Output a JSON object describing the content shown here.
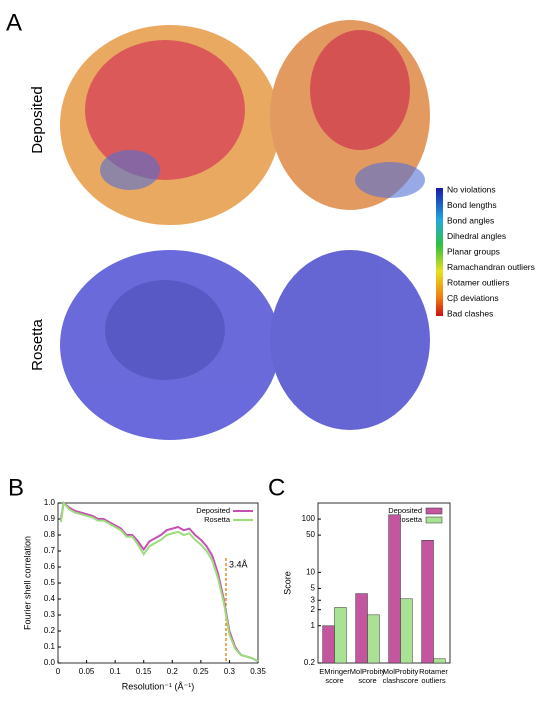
{
  "panel_a": {
    "label": "A",
    "rows": [
      "Deposited",
      "Rosetta"
    ],
    "legend": [
      "No violations",
      "Bond lengths",
      "Bond angles",
      "Dihedral angles",
      "Planar groups",
      "Ramachandran outliers",
      "Rotamer outliers",
      "Cβ deviations",
      "Bad clashes"
    ]
  },
  "chart_data": [
    {
      "type": "line",
      "panel": "B",
      "xlabel": "Resolution⁻¹ (Å⁻¹)",
      "ylabel": "Fourier shell correlation",
      "x": [
        0.005,
        0.01,
        0.02,
        0.03,
        0.04,
        0.05,
        0.06,
        0.07,
        0.08,
        0.09,
        0.1,
        0.11,
        0.12,
        0.13,
        0.14,
        0.15,
        0.16,
        0.17,
        0.18,
        0.19,
        0.2,
        0.21,
        0.22,
        0.23,
        0.24,
        0.25,
        0.26,
        0.27,
        0.28,
        0.29,
        0.3,
        0.31,
        0.32,
        0.33,
        0.34,
        0.35
      ],
      "series": [
        {
          "name": "Deposited",
          "color": "#c54fb4",
          "values": [
            0.9,
            1.0,
            0.97,
            0.95,
            0.94,
            0.93,
            0.92,
            0.9,
            0.9,
            0.88,
            0.86,
            0.84,
            0.8,
            0.8,
            0.76,
            0.71,
            0.76,
            0.78,
            0.8,
            0.83,
            0.84,
            0.85,
            0.83,
            0.84,
            0.8,
            0.77,
            0.73,
            0.67,
            0.56,
            0.4,
            0.2,
            0.1,
            0.05,
            0.04,
            0.03,
            0.01
          ]
        },
        {
          "name": "Rosetta",
          "color": "#9bdc7c",
          "values": [
            0.88,
            1.0,
            0.96,
            0.94,
            0.93,
            0.92,
            0.91,
            0.89,
            0.89,
            0.87,
            0.85,
            0.83,
            0.79,
            0.79,
            0.74,
            0.68,
            0.73,
            0.75,
            0.77,
            0.8,
            0.81,
            0.82,
            0.8,
            0.81,
            0.77,
            0.74,
            0.7,
            0.64,
            0.53,
            0.38,
            0.18,
            0.09,
            0.05,
            0.04,
            0.03,
            0.01
          ]
        }
      ],
      "xlim": [
        0,
        0.35
      ],
      "xticks": [
        0,
        0.05,
        0.1,
        0.15,
        0.2,
        0.25,
        0.3,
        0.35
      ],
      "ylim": [
        0,
        1
      ],
      "yticks": [
        {
          "value": 0,
          "label": "0.0"
        },
        0.1,
        0.2,
        0.3,
        0.4,
        0.5,
        0.6,
        0.7,
        0.8,
        0.9,
        {
          "value": 1,
          "label": "1.0"
        }
      ],
      "annotation": {
        "text": "3.4Å",
        "x": 0.294,
        "color": "#e07b00"
      },
      "legend": "upper right"
    },
    {
      "type": "bar",
      "panel": "C",
      "ylabel": "Score",
      "yscale": "log",
      "categories": [
        "EMringer score",
        "MolProbity score",
        "MolProbity clashscore",
        "Rotamer outliers"
      ],
      "series": [
        {
          "name": "Deposited",
          "color": "#c4559f",
          "values": [
            1.0,
            4.0,
            120,
            40
          ]
        },
        {
          "name": "Rosetta",
          "color": "#a9e293",
          "values": [
            2.2,
            1.6,
            3.2,
            0.24
          ]
        }
      ],
      "ylim": [
        0.2,
        200
      ],
      "yticks": [
        0.2,
        1,
        2,
        3,
        5,
        10,
        50,
        100
      ],
      "legend": "upper right"
    }
  ]
}
